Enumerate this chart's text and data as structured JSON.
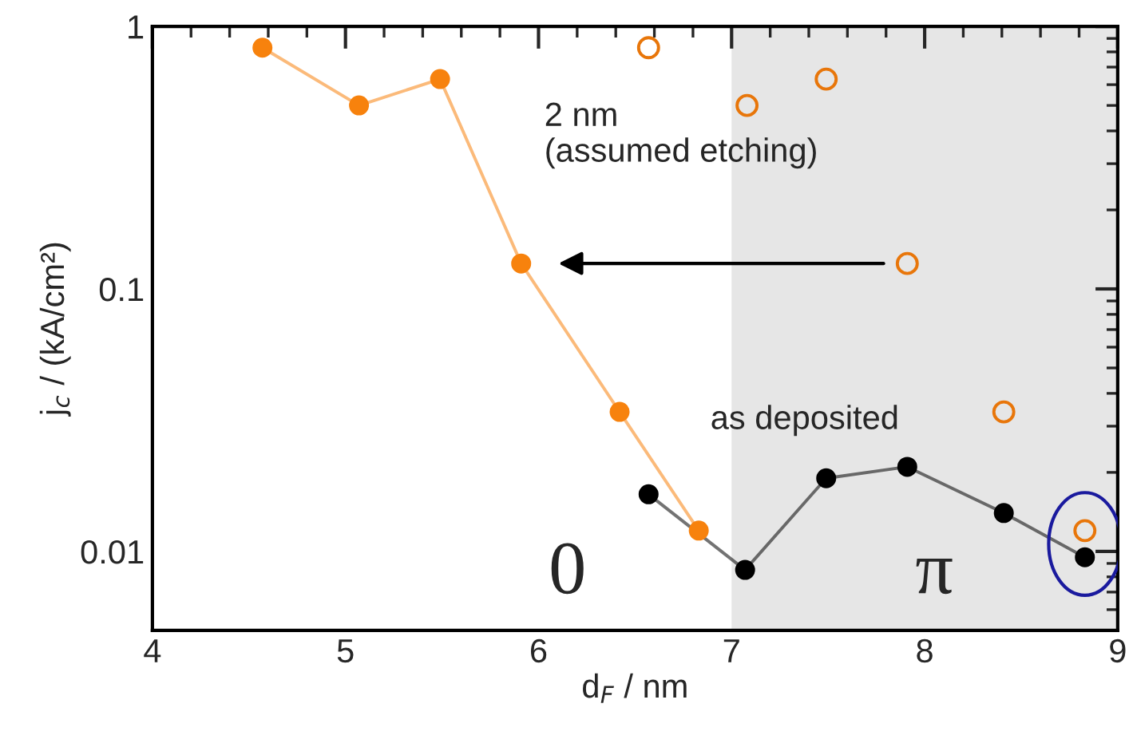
{
  "chart_data": {
    "type": "line",
    "log": "y",
    "xlabel": "d$_{F}$ / nm",
    "ylabel": "j$_{c}$ / (kA/cm²)",
    "xlim": [
      4,
      9
    ],
    "xticks": [
      4,
      5,
      6,
      7,
      8,
      9
    ],
    "ylim": [
      0.005,
      1
    ],
    "yticks": [
      0.01,
      0.1,
      1
    ],
    "grid": false,
    "legend": false,
    "marker": "circle",
    "series": [
      {
        "color": "#f7820d",
        "x": [
          4.57,
          5.07,
          5.49,
          5.91,
          6.42,
          6.83
        ],
        "values": [
          0.83,
          0.5,
          0.63,
          0.125,
          0.034,
          0.012
        ]
      },
      {
        "type": "scatter",
        "color": "#e8760a",
        "x": [
          6.57,
          7.08,
          7.49,
          7.91,
          8.41,
          8.83
        ],
        "values": [
          0.83,
          0.5,
          0.63,
          0.125,
          0.034,
          0.012
        ]
      },
      {
        "name": "as deposited",
        "color": "#000000",
        "x": [
          6.57,
          7.07,
          7.49,
          7.91,
          8.41,
          8.83
        ],
        "values": [
          0.0165,
          0.0085,
          0.019,
          0.021,
          0.014,
          0.0095
        ]
      }
    ],
    "bands": [
      {
        "axis": "x",
        "from": 7,
        "to": 9,
        "color": "#e6e6e6"
      }
    ],
    "annotations": [
      {
        "text": "2 nm\n(assumed etching)",
        "x": 5.91,
        "y": 0.125
      },
      "0",
      "π"
    ]
  }
}
